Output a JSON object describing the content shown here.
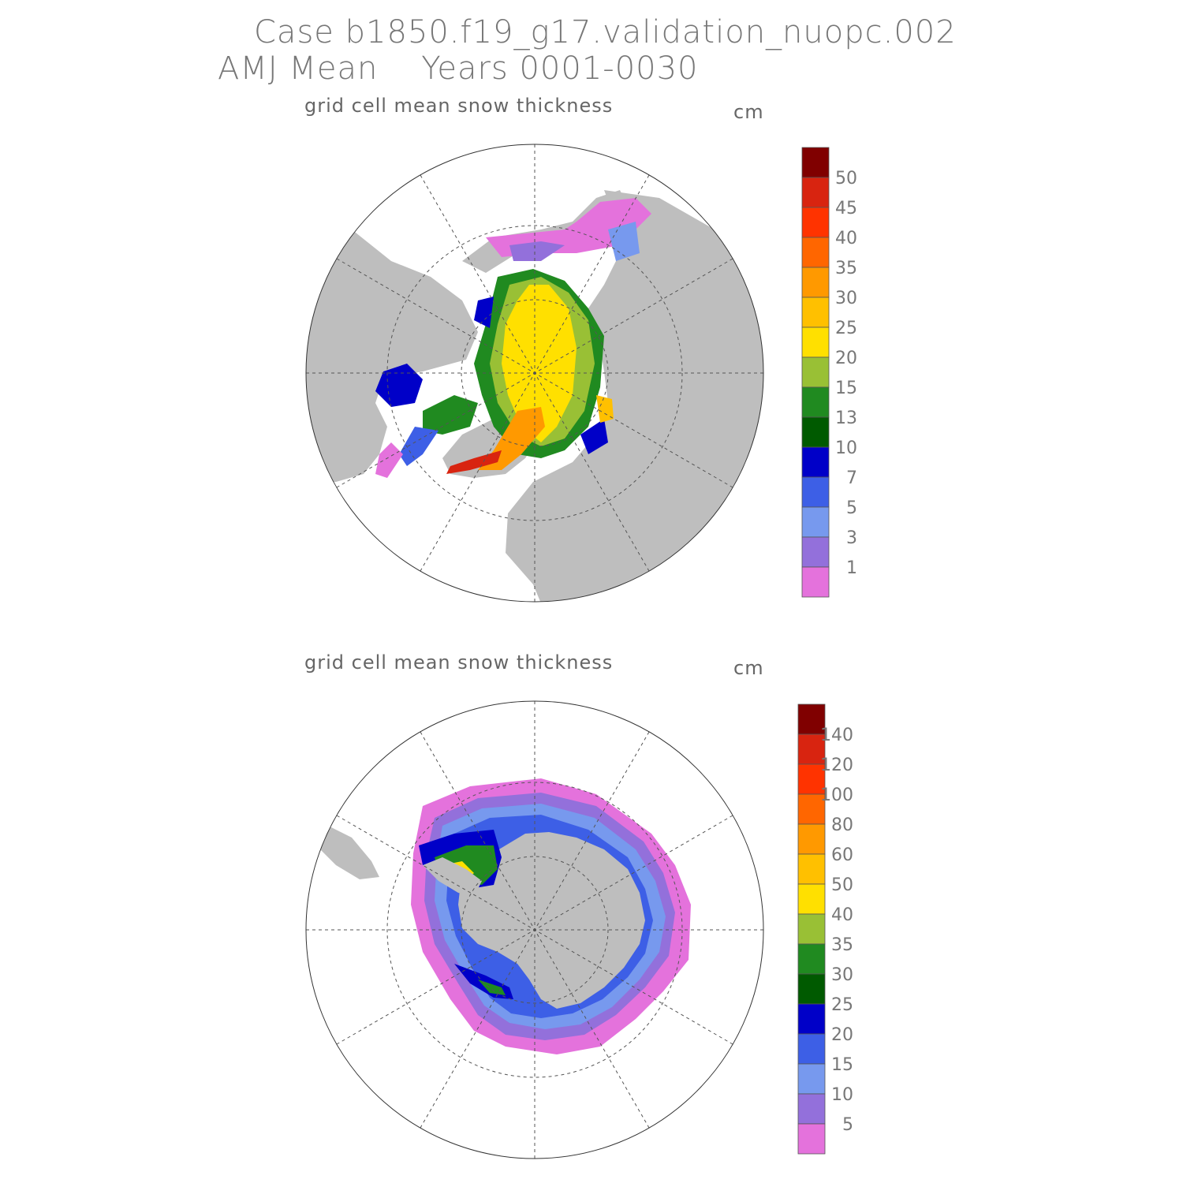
{
  "header": {
    "case_line": "Case b1850.f19_g17.validation_nuopc.002",
    "period_line": "AMJ Mean    Years 0001-0030"
  },
  "panels": [
    {
      "id": "north",
      "field_title": "grid cell mean snow thickness",
      "units": "cm",
      "colorbar": {
        "labels": [
          "50",
          "45",
          "40",
          "35",
          "30",
          "25",
          "20",
          "15",
          "13",
          "10",
          "7",
          "5",
          "3",
          "1"
        ],
        "colors": [
          "#800000",
          "#d82410",
          "#ff3300",
          "#ff6600",
          "#ff9900",
          "#ffc000",
          "#ffe000",
          "#99c035",
          "#208a20",
          "#005a00",
          "#0000c8",
          "#3d5fe6",
          "#7799ee",
          "#9370db",
          "#e472dc"
        ]
      }
    },
    {
      "id": "south",
      "field_title": "grid cell mean snow thickness",
      "units": "cm",
      "colorbar": {
        "labels": [
          "140",
          "120",
          "100",
          "80",
          "60",
          "50",
          "40",
          "35",
          "30",
          "25",
          "20",
          "15",
          "10",
          "5"
        ],
        "colors": [
          "#800000",
          "#d82410",
          "#ff3300",
          "#ff6600",
          "#ff9900",
          "#ffc000",
          "#ffe000",
          "#99c035",
          "#208a20",
          "#005a00",
          "#0000c8",
          "#3d5fe6",
          "#7799ee",
          "#9370db",
          "#e472dc"
        ]
      }
    }
  ],
  "colors": {
    "land": "#bebebe",
    "ocean": "#ffffff",
    "grid": "#555555"
  }
}
